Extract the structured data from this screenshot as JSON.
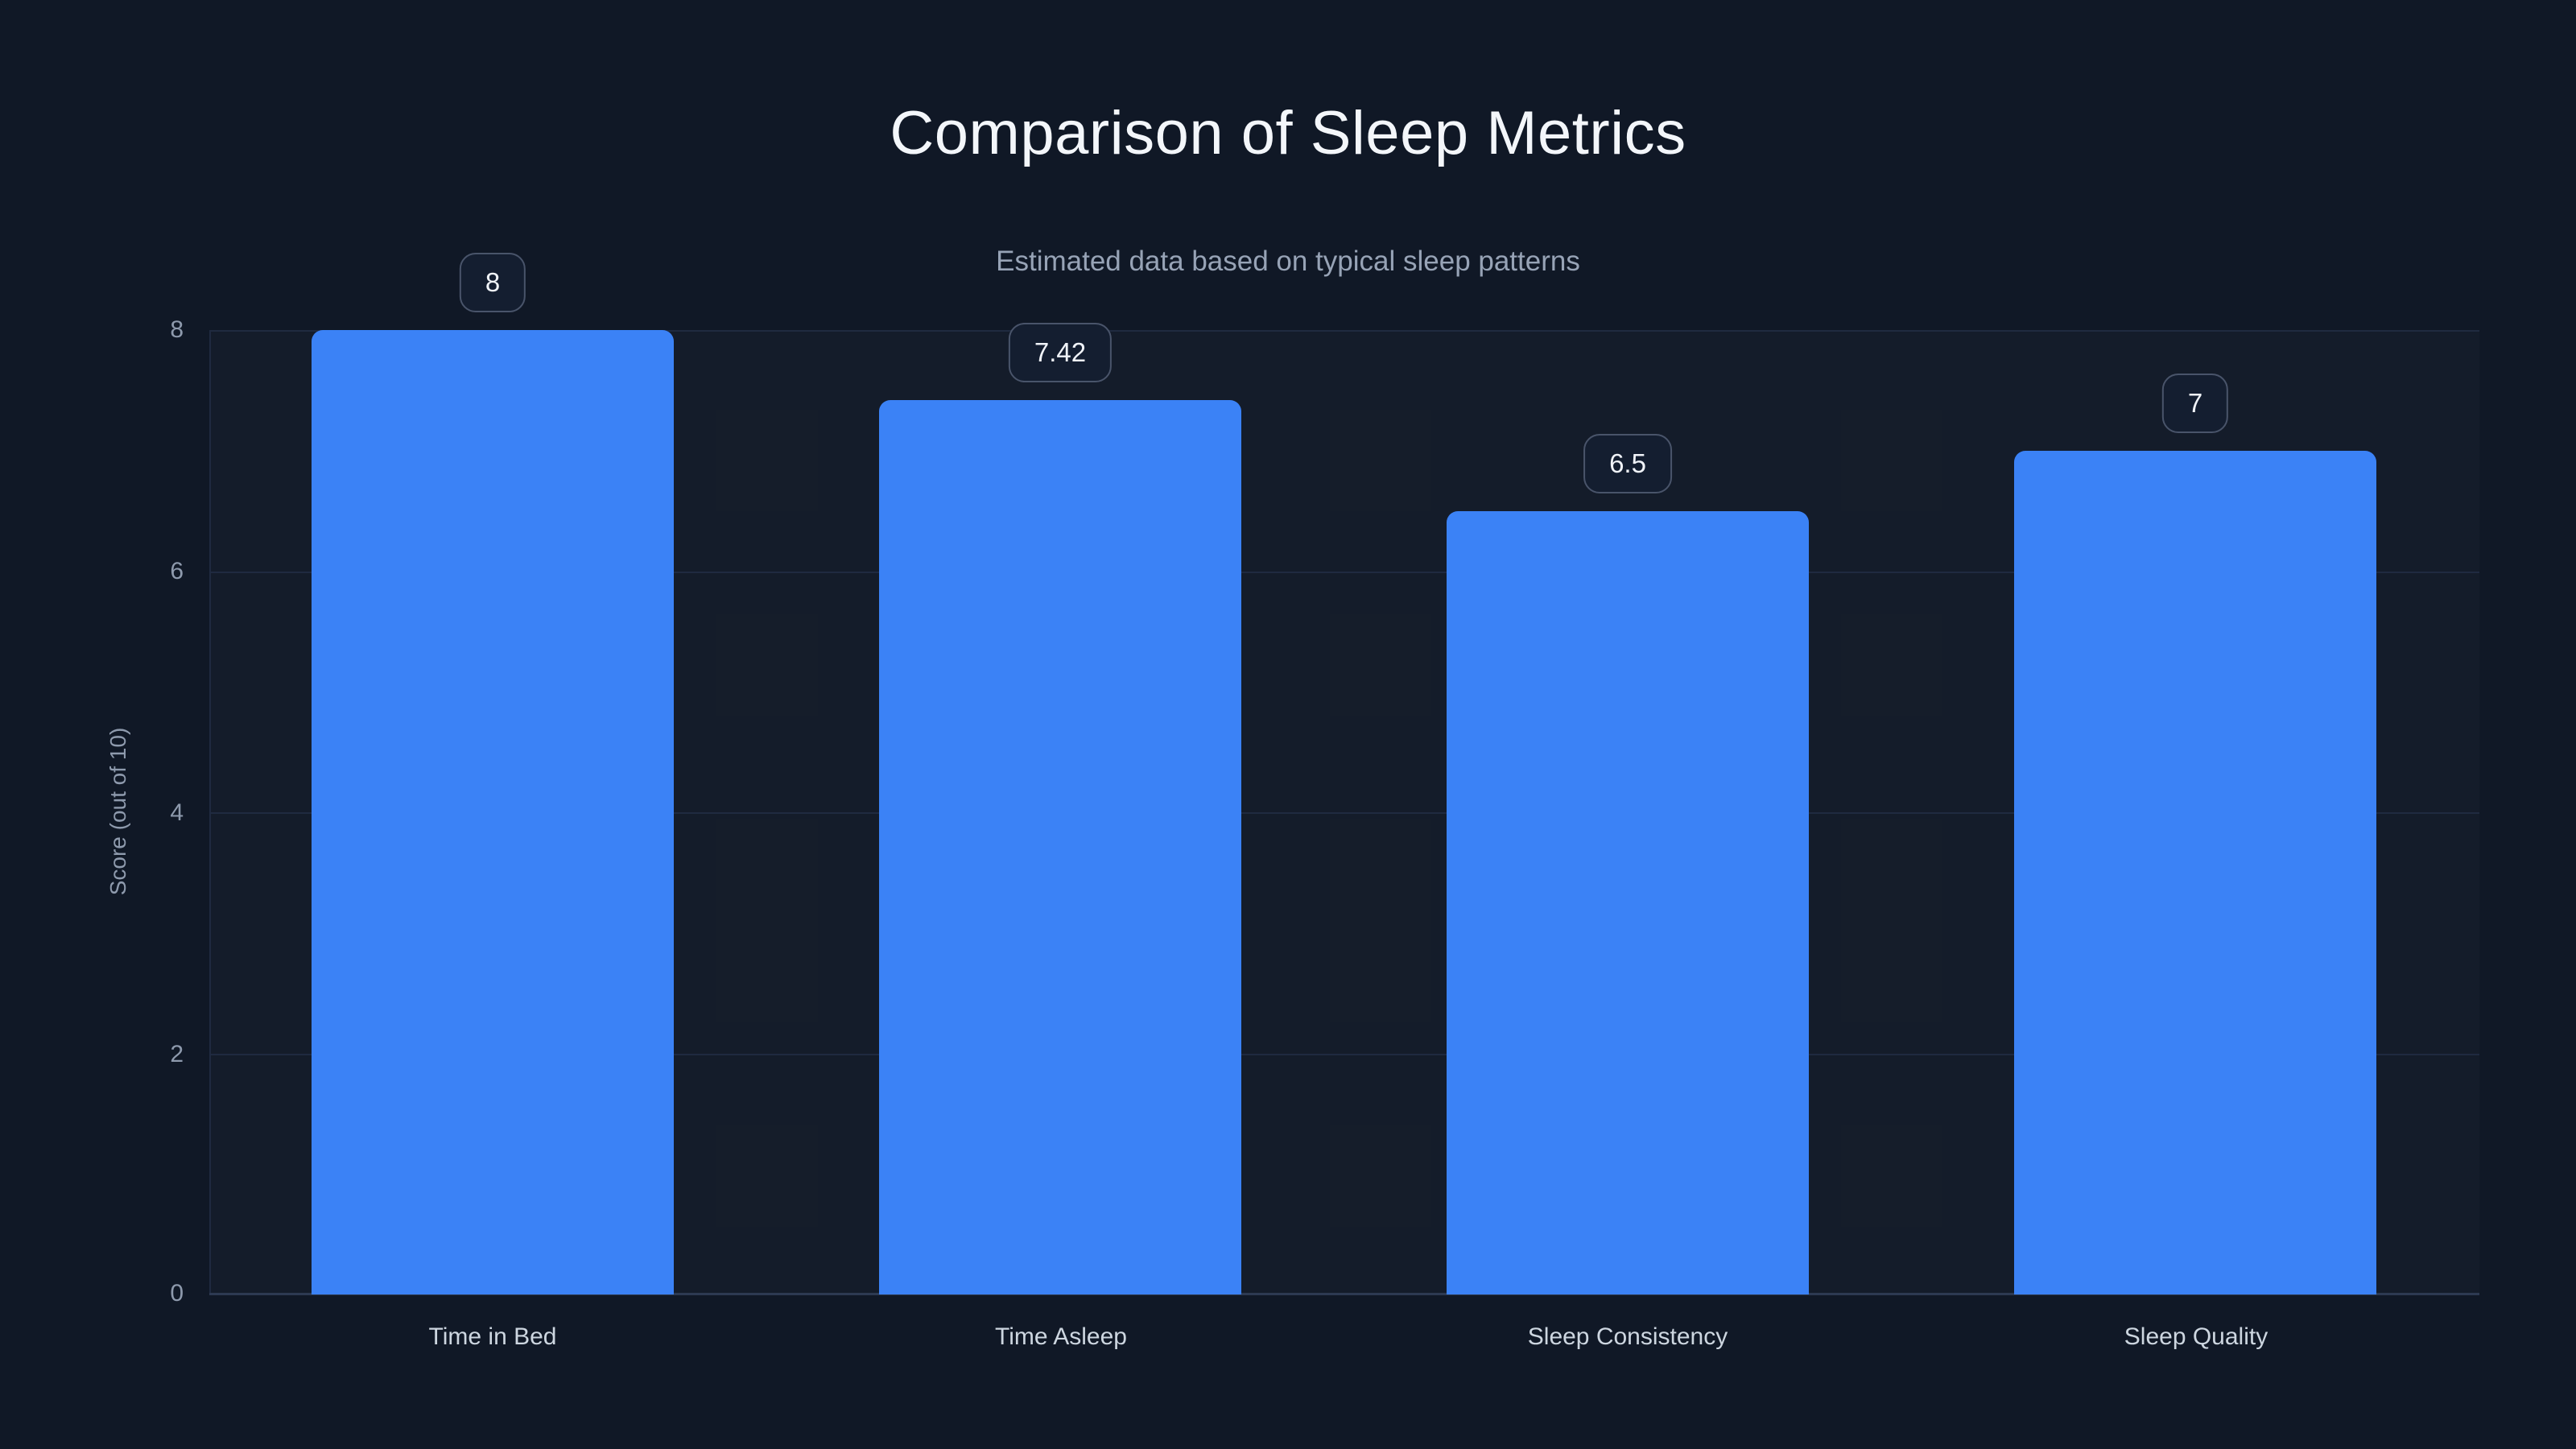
{
  "chart_data": {
    "type": "bar",
    "title": "Comparison of Sleep Metrics",
    "subtitle": "Estimated data based on typical sleep patterns",
    "ylabel": "Score (out of 10)",
    "xlabel": "",
    "categories": [
      "Time in Bed",
      "Time Asleep",
      "Sleep Consistency",
      "Sleep Quality"
    ],
    "values": [
      8,
      7.42,
      6.5,
      7
    ],
    "value_labels": [
      "8",
      "7.42",
      "6.5",
      "7"
    ],
    "yticks": [
      "0",
      "2",
      "4",
      "6",
      "8"
    ],
    "ylim": [
      0,
      8
    ],
    "grid": true,
    "legend": false,
    "bar_color": "#3b82f6"
  },
  "colors": {
    "background": "#101826",
    "bar": "#3b82f6",
    "grid_line": "#1f2a40",
    "axis_line": "#2d3a52",
    "title_text": "#f3f6fa",
    "subtitle_text": "#97a3b6",
    "tick_text": "#8e9aad",
    "category_text": "#cdd6e0",
    "chip_text": "#f0f3f8",
    "chip_border": "#49546a",
    "chip_bg": "#141e30"
  }
}
